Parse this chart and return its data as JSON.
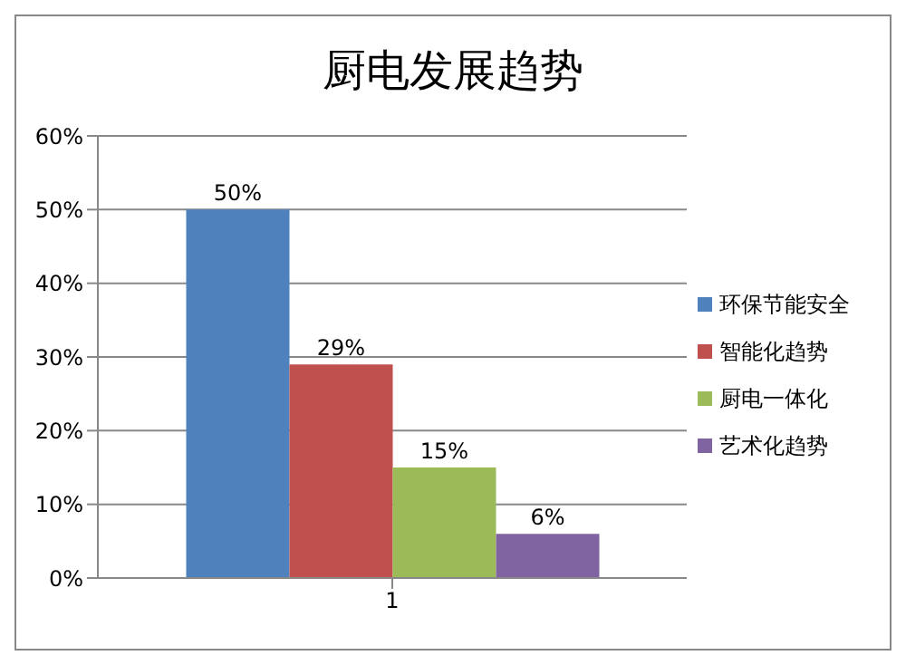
{
  "chart_data": {
    "type": "bar",
    "title": "厨电发展趋势",
    "categories": [
      "1"
    ],
    "series": [
      {
        "name": "环保节能安全",
        "color": "#4f81bd",
        "values": [
          50
        ],
        "value_labels": [
          "50%"
        ]
      },
      {
        "name": "智能化趋势",
        "color": "#c0504d",
        "values": [
          29
        ],
        "value_labels": [
          "29%"
        ]
      },
      {
        "name": "厨电一体化",
        "color": "#9bbb59",
        "values": [
          15
        ],
        "value_labels": [
          "15%"
        ]
      },
      {
        "name": "艺术化趋势",
        "color": "#8064a2",
        "values": [
          6
        ],
        "value_labels": [
          "6%"
        ]
      }
    ],
    "ylim": [
      0,
      60
    ],
    "yticks": [
      {
        "value": 0,
        "label": "0%"
      },
      {
        "value": 10,
        "label": "10%"
      },
      {
        "value": 20,
        "label": "20%"
      },
      {
        "value": 30,
        "label": "30%"
      },
      {
        "value": 40,
        "label": "40%"
      },
      {
        "value": 50,
        "label": "50%"
      },
      {
        "value": 60,
        "label": "60%"
      }
    ],
    "grid": "y",
    "legend": "right"
  }
}
